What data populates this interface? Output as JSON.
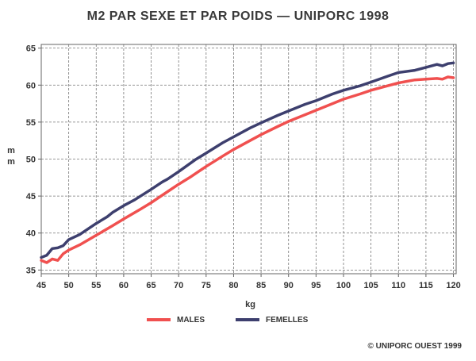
{
  "chart_data": {
    "type": "line",
    "title": "M2 PAR SEXE ET PAR POIDS — UNIPORC 1998",
    "xlabel": "kg",
    "ylabel": "m m",
    "xlim": [
      45,
      120.5
    ],
    "ylim": [
      34.5,
      65.5
    ],
    "x_ticks": [
      45,
      50,
      55,
      60,
      65,
      70,
      75,
      80,
      85,
      90,
      95,
      100,
      105,
      110,
      115,
      120
    ],
    "y_ticks": [
      35,
      40,
      45,
      50,
      55,
      60,
      65
    ],
    "grid": true,
    "legend_position": "bottom",
    "series": [
      {
        "name": "MALES",
        "color": "#f0504f",
        "x": [
          45,
          46,
          47,
          48,
          49,
          50,
          52,
          55,
          58,
          60,
          63,
          65,
          68,
          70,
          72,
          75,
          78,
          80,
          83,
          85,
          88,
          90,
          93,
          95,
          98,
          100,
          103,
          105,
          108,
          110,
          113,
          115,
          117,
          118,
          119,
          120
        ],
        "y": [
          36.3,
          36.0,
          36.5,
          36.3,
          37.2,
          37.7,
          38.4,
          39.7,
          41.0,
          41.9,
          43.2,
          44.1,
          45.6,
          46.6,
          47.5,
          49.0,
          50.4,
          51.3,
          52.5,
          53.3,
          54.4,
          55.1,
          56.0,
          56.6,
          57.5,
          58.1,
          58.8,
          59.3,
          59.9,
          60.3,
          60.7,
          60.8,
          60.9,
          60.8,
          61.1,
          61.0
        ]
      },
      {
        "name": "FEMELLES",
        "color": "#3d3f6e",
        "x": [
          45,
          46,
          47,
          48,
          49,
          50,
          52,
          55,
          57,
          58,
          60,
          62,
          65,
          67,
          68,
          70,
          73,
          75,
          78,
          80,
          83,
          85,
          88,
          90,
          93,
          95,
          98,
          100,
          103,
          105,
          108,
          110,
          113,
          115,
          117,
          118,
          119,
          120
        ],
        "y": [
          36.7,
          37.0,
          37.9,
          38.0,
          38.3,
          39.1,
          39.8,
          41.3,
          42.2,
          42.8,
          43.7,
          44.5,
          45.9,
          46.9,
          47.3,
          48.3,
          49.9,
          50.8,
          52.2,
          53.0,
          54.2,
          54.9,
          55.9,
          56.5,
          57.4,
          57.9,
          58.8,
          59.3,
          59.9,
          60.4,
          61.2,
          61.7,
          62.0,
          62.4,
          62.8,
          62.6,
          62.9,
          63.0
        ]
      }
    ]
  },
  "copyright": "© UNIPORC OUEST 1999"
}
